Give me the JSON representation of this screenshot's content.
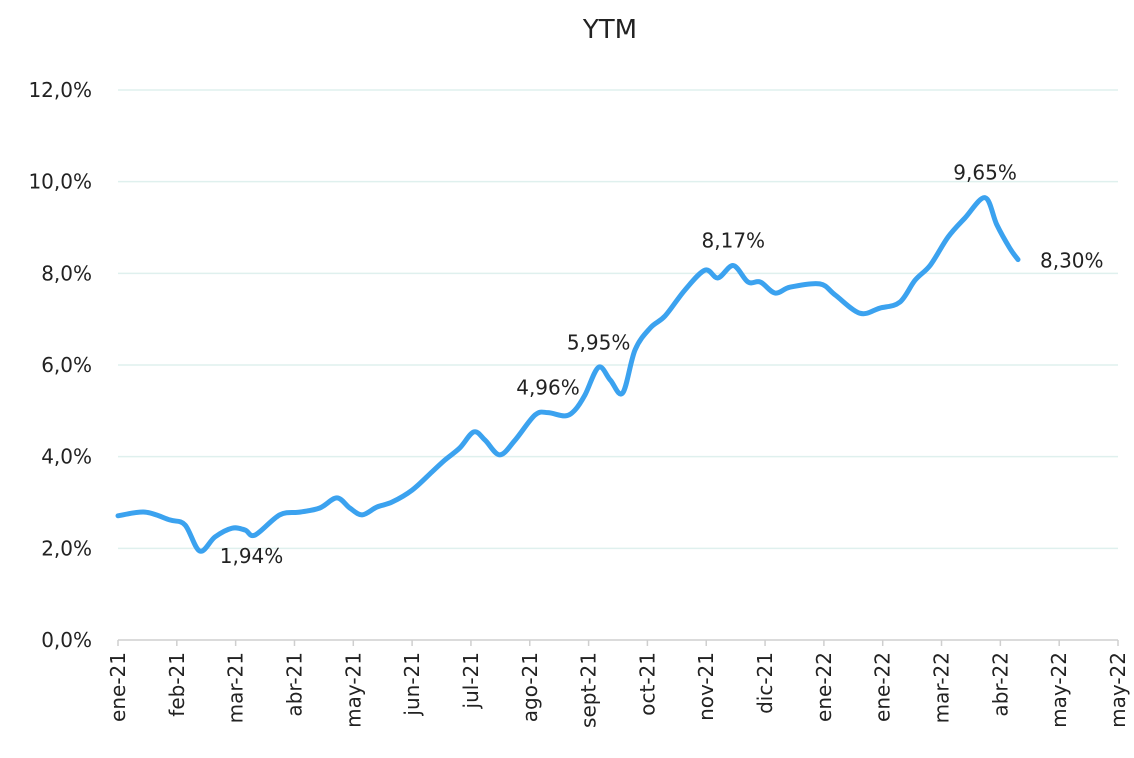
{
  "chart_data": {
    "type": "line",
    "title": "YTM",
    "xlim": [
      0,
      17
    ],
    "xticks": [
      {
        "value": 0,
        "label": "ene-21"
      },
      {
        "value": 1,
        "label": "feb-21"
      },
      {
        "value": 2,
        "label": "mar-21"
      },
      {
        "value": 3,
        "label": "abr-21"
      },
      {
        "value": 4,
        "label": "may-21"
      },
      {
        "value": 5,
        "label": "jun-21"
      },
      {
        "value": 6,
        "label": "jul-21"
      },
      {
        "value": 7,
        "label": "ago-21"
      },
      {
        "value": 8,
        "label": "sept-21"
      },
      {
        "value": 9,
        "label": "oct-21"
      },
      {
        "value": 10,
        "label": "nov-21"
      },
      {
        "value": 11,
        "label": "dic-21"
      },
      {
        "value": 12,
        "label": "ene-22"
      },
      {
        "value": 13,
        "label": "ene-22"
      },
      {
        "value": 14,
        "label": "mar-22"
      },
      {
        "value": 15,
        "label": "abr-22"
      },
      {
        "value": 16,
        "label": "may-22"
      },
      {
        "value": 17,
        "label": "may-22"
      }
    ],
    "ylim": [
      0,
      12
    ],
    "yticks": [
      {
        "value": 0,
        "label": "0,0%"
      },
      {
        "value": 2,
        "label": "2,0%"
      },
      {
        "value": 4,
        "label": "4,0%"
      },
      {
        "value": 6,
        "label": "6,0%"
      },
      {
        "value": 8,
        "label": "8,0%"
      },
      {
        "value": 10,
        "label": "10,0%"
      },
      {
        "value": 12,
        "label": "12,0%"
      }
    ],
    "grid": true,
    "x": [
      0,
      0.46,
      0.88,
      1.14,
      1.39,
      1.65,
      1.94,
      2.16,
      2.33,
      2.75,
      3.09,
      3.43,
      3.72,
      3.94,
      4.15,
      4.4,
      4.66,
      5.0,
      5.34,
      5.56,
      5.81,
      6.05,
      6.24,
      6.49,
      6.75,
      7.09,
      7.31,
      7.6,
      7.77,
      7.94,
      8.17,
      8.37,
      8.58,
      8.79,
      9.05,
      9.3,
      9.64,
      9.98,
      10.2,
      10.46,
      10.71,
      10.92,
      11.17,
      11.43,
      11.93,
      12.19,
      12.61,
      12.95,
      13.29,
      13.55,
      13.81,
      14.11,
      14.4,
      14.74,
      14.94,
      15.16,
      15.3
    ],
    "series": [
      {
        "name": "YTM",
        "color": "#3ba2ef",
        "values": [
          2.71,
          2.79,
          2.62,
          2.51,
          1.94,
          2.25,
          2.44,
          2.4,
          2.29,
          2.73,
          2.79,
          2.88,
          3.1,
          2.88,
          2.73,
          2.9,
          3.01,
          3.27,
          3.67,
          3.93,
          4.19,
          4.54,
          4.36,
          4.04,
          4.36,
          4.91,
          4.96,
          4.89,
          5.02,
          5.35,
          5.95,
          5.67,
          5.39,
          6.33,
          6.81,
          7.07,
          7.64,
          8.07,
          7.9,
          8.17,
          7.81,
          7.81,
          7.57,
          7.7,
          7.77,
          7.53,
          7.13,
          7.24,
          7.37,
          7.85,
          8.18,
          8.79,
          9.21,
          9.65,
          9.06,
          8.55,
          8.3
        ],
        "value_labels": [
          null,
          null,
          null,
          null,
          "1,94%",
          null,
          null,
          null,
          null,
          null,
          null,
          null,
          null,
          null,
          null,
          null,
          null,
          null,
          null,
          null,
          null,
          null,
          null,
          null,
          null,
          null,
          "4,96%",
          null,
          null,
          null,
          "5,95%",
          null,
          null,
          null,
          null,
          null,
          null,
          null,
          null,
          "8,17%",
          null,
          null,
          null,
          null,
          null,
          null,
          null,
          null,
          null,
          null,
          null,
          null,
          null,
          "9,65%",
          null,
          null,
          "8,30%"
        ]
      }
    ]
  }
}
